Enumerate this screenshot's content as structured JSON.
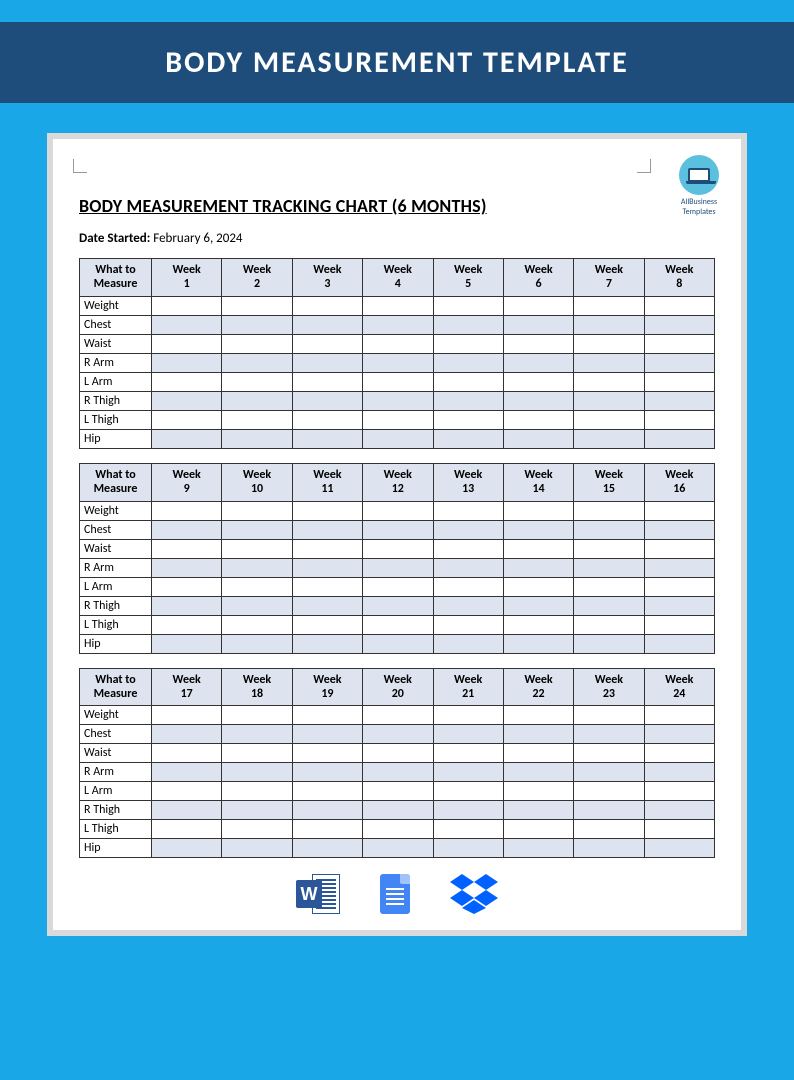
{
  "page": {
    "header_title": "BODY MEASUREMENT TEMPLATE",
    "doc_title": "BODY MEASUREMENT TRACKING CHART (6 MONTHS)",
    "date_label": "Date Started:",
    "date_value": "February 6, 2024",
    "brand_line1": "AllBusiness",
    "brand_line2": "Templates"
  },
  "colors": {
    "page_bg": "#1aa7e8",
    "header_bg": "#1e4d7b",
    "header_text": "#ffffff",
    "doc_wrap_bg": "#d9d9d9",
    "doc_bg": "#ffffff",
    "table_border": "#333333",
    "table_header_bg": "#dde4ef",
    "table_alt_row_bg": "#dde4ef",
    "text_color": "#000000",
    "word_icon": "#2b579a",
    "gdoc_icon": "#4285f4",
    "dropbox_icon": "#0061ff",
    "brand_circle": "#5bc0de"
  },
  "typography": {
    "header_fontsize": 30,
    "doc_title_fontsize": 18,
    "date_fontsize": 13,
    "table_fontsize": 12
  },
  "tables": {
    "first_col_header": "What to Measure",
    "week_prefix": "Week",
    "row_labels": [
      "Weight",
      "Chest",
      "Waist",
      "R Arm",
      "L  Arm",
      "R Thigh",
      "L Thigh",
      "Hip"
    ],
    "sections": [
      {
        "weeks": [
          1,
          2,
          3,
          4,
          5,
          6,
          7,
          8
        ]
      },
      {
        "weeks": [
          9,
          10,
          11,
          12,
          13,
          14,
          15,
          16
        ]
      },
      {
        "weeks": [
          17,
          18,
          19,
          20,
          21,
          22,
          23,
          24
        ]
      }
    ]
  }
}
